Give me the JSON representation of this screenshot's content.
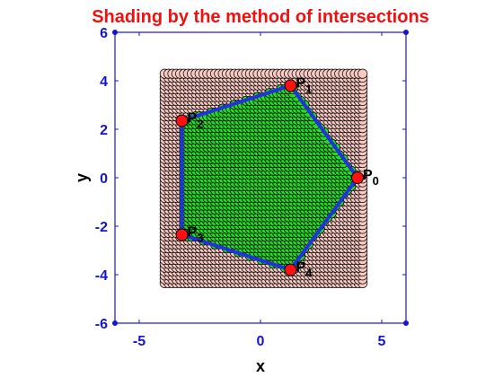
{
  "chart_data": {
    "type": "scatter",
    "title": "Shading by the method of intersections",
    "xlabel": "x",
    "ylabel": "y",
    "xlim": [
      -6,
      6
    ],
    "ylim": [
      -6,
      6
    ],
    "xticks": [
      -5,
      0,
      5
    ],
    "yticks": [
      -6,
      -4,
      -2,
      0,
      2,
      4,
      6
    ],
    "grid": false,
    "title_color": "#ee1111",
    "axis_color": "#1515d0",
    "region_bounds": {
      "x": [
        -3.95,
        4.35
      ],
      "y": [
        -4.35,
        4.35
      ]
    },
    "outside_color": "#f7c9c2",
    "inside_color": "#22dd22",
    "polygon_color": "#2233dd",
    "vertex_color": "#ff1111",
    "vertices": [
      {
        "name": "P",
        "sub": "0",
        "x": 4.0,
        "y": 0.0
      },
      {
        "name": "P",
        "sub": "1",
        "x": 1.24,
        "y": 3.8
      },
      {
        "name": "P",
        "sub": "2",
        "x": -3.24,
        "y": 2.35
      },
      {
        "name": "P",
        "sub": "3",
        "x": -3.24,
        "y": -2.35
      },
      {
        "name": "P",
        "sub": "4",
        "x": 1.24,
        "y": -3.8
      }
    ]
  }
}
